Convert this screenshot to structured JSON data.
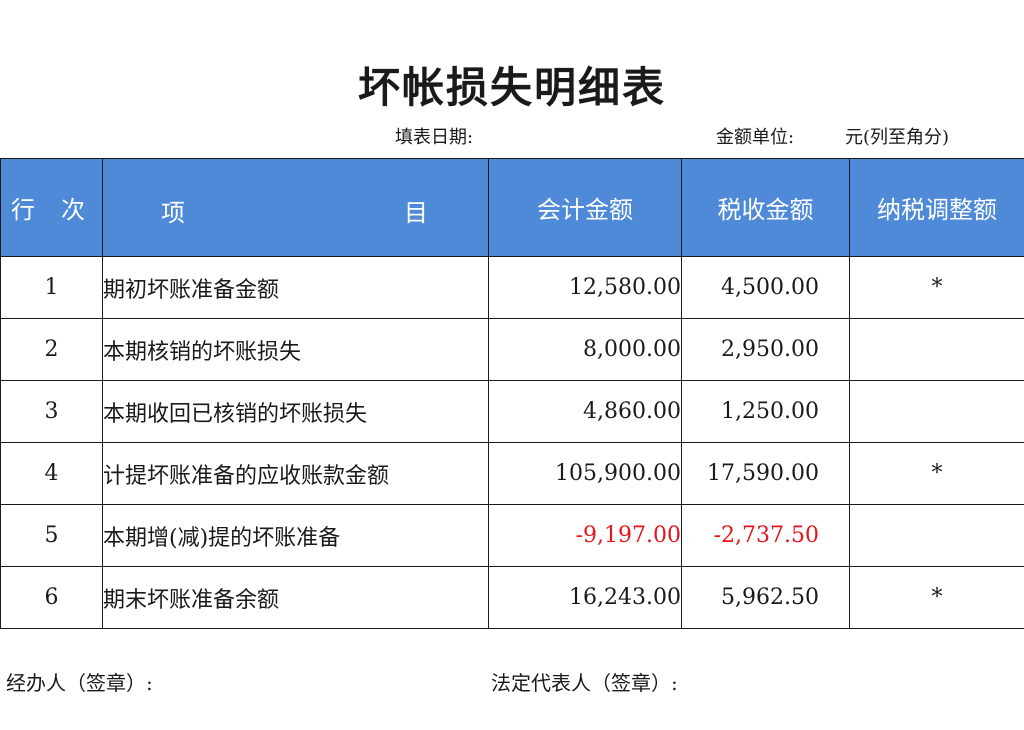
{
  "title": "坏帐损失明细表",
  "meta": {
    "fill_date_label": "填表日期:",
    "unit_label": "金额单位:",
    "unit_value": "元(列至角分)"
  },
  "colors": {
    "header_bg": "#4f8ad9",
    "header_text": "#ffffff",
    "negative": "#e8141b"
  },
  "table": {
    "headers": {
      "row_no": "行次",
      "item_left": "项",
      "item_right": "目",
      "accounting": "会计金额",
      "tax": "税收金额",
      "adjustment": "纳税调整额"
    },
    "rows": [
      {
        "no": "1",
        "name": "期初坏账准备金额",
        "accounting": "12,580.00",
        "tax": "4,500.00",
        "adjustment": "*"
      },
      {
        "no": "2",
        "name": "本期核销的坏账损失",
        "accounting": "8,000.00",
        "tax": "2,950.00",
        "adjustment": ""
      },
      {
        "no": "3",
        "name": "本期收回已核销的坏账损失",
        "accounting": "4,860.00",
        "tax": "1,250.00",
        "adjustment": ""
      },
      {
        "no": "4",
        "name": "计提坏账准备的应收账款金额",
        "accounting": "105,900.00",
        "tax": "17,590.00",
        "adjustment": "*"
      },
      {
        "no": "5",
        "name": "本期增(减)提的坏账准备",
        "accounting": "-9,197.00",
        "tax": "-2,737.50",
        "adjustment": ""
      },
      {
        "no": "6",
        "name": "期末坏账准备余额",
        "accounting": "16,243.00",
        "tax": "5,962.50",
        "adjustment": "*"
      }
    ]
  },
  "signatures": {
    "handler": "经办人（签章）:",
    "legal_rep": "法定代表人（签章）:"
  }
}
